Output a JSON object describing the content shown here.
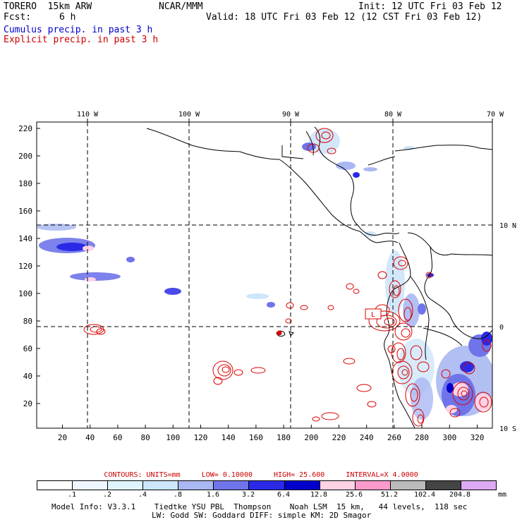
{
  "header": {
    "model": "TORERO  15km ARW",
    "org": "NCAR/MMM",
    "init": "Init: 12 UTC Fri 03 Feb 12",
    "fcst_label": "Fcst:",
    "fcst_value": "6 h",
    "valid": "Valid: 18 UTC Fri 03 Feb 12 (12 CST Fri 03 Feb 12)",
    "field1": "Cumulus precip. in past 3 h",
    "field2": "Explicit precip. in past 3 h"
  },
  "colors": {
    "cumulus_text": "#0000cc",
    "explicit_text": "#cc0000",
    "contour": "#dd0000",
    "coast": "#000000",
    "grid": "#000000"
  },
  "map": {
    "lon_labels": [
      "110 W",
      "100 W",
      "90 W",
      "80 W",
      "70 W"
    ],
    "lat_labels": [
      "10 N",
      "0",
      "10 S"
    ],
    "y_ticks": [
      "220",
      "200",
      "180",
      "160",
      "140",
      "120",
      "100",
      "80",
      "60",
      "40",
      "20"
    ],
    "x_ticks": [
      "20",
      "40",
      "60",
      "80",
      "100",
      "120",
      "140",
      "160",
      "180",
      "200",
      "220",
      "240",
      "260",
      "280",
      "300",
      "320"
    ],
    "marker_label": "L"
  },
  "contours": {
    "units": "CONTOURS:  UNITS=mm",
    "low": "LOW=  0.10000",
    "high": "HIGH=  25.600",
    "interval": "INTERVAL=X  4.0000"
  },
  "colorbar": {
    "labels": [
      ".1",
      ".2",
      ".4",
      ".8",
      "1.6",
      "3.2",
      "6.4",
      "12.8",
      "25.6",
      "51.2",
      "102.4",
      "204.8"
    ],
    "colors": [
      "#ffffff",
      "#eef7ff",
      "#e0f4ff",
      "#cde6fa",
      "#a9b8f2",
      "#6f74ea",
      "#2a2ae6",
      "#0000cc",
      "#ffd3e6",
      "#ff9bcc",
      "#bbbbbb",
      "#444444",
      "#dcaaf2"
    ],
    "unit": "mm"
  },
  "footer": {
    "line1": "Model Info: V3.3.1    Tiedtke YSU PBL  Thompson    Noah LSM  15 km,   44 levels,  118 sec",
    "line2": "LW: Godd SW: Goddard DIFF: simple KM: 2D Smagor"
  }
}
